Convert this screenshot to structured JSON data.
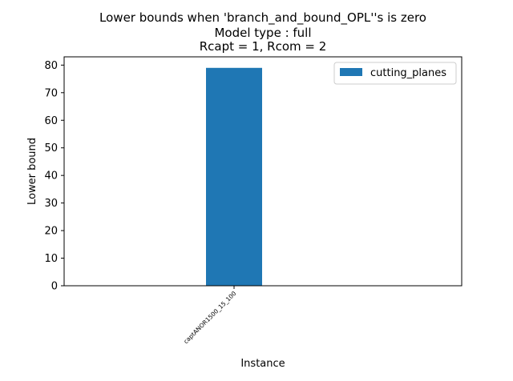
{
  "chart_data": {
    "type": "bar",
    "title_lines": [
      "Lower bounds when 'branch_and_bound_OPL''s is zero",
      "Model type : full",
      "Rcapt = 1, Rcom = 2"
    ],
    "xlabel": "Instance",
    "ylabel": "Lower bound",
    "categories": [
      "captANOR1500_15_100"
    ],
    "series": [
      {
        "name": "cutting_planes",
        "values": [
          79
        ],
        "color": "#1f77b4"
      }
    ],
    "ylim": [
      0,
      83
    ],
    "yticks": [
      0,
      10,
      20,
      30,
      40,
      50,
      60,
      70,
      80
    ],
    "grid": false,
    "legend": "top-right"
  }
}
